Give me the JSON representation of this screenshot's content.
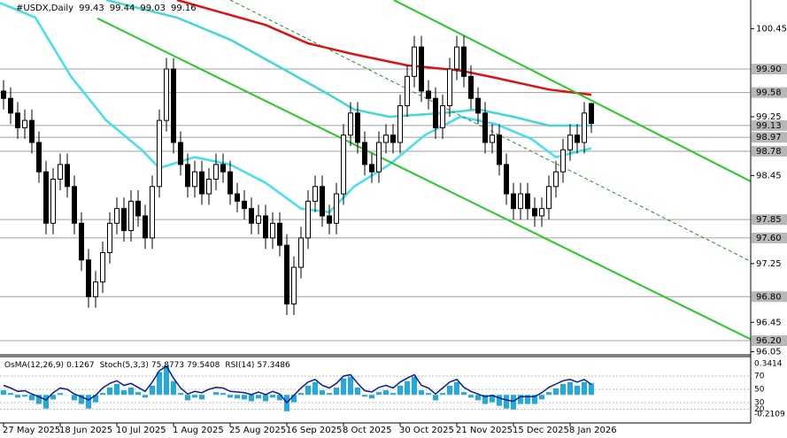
{
  "chart_data": {
    "type": "candlestick",
    "symbol": "#USDX,Daily",
    "quote": [
      99.43,
      99.44,
      99.03,
      99.16
    ],
    "ylim": [
      96.02,
      100.84
    ],
    "yticks": [
      100.45,
      99.25,
      98.45,
      97.25,
      96.45,
      96.05
    ],
    "levels": [
      {
        "value": 99.9,
        "label": "99.90"
      },
      99.58,
      99.13,
      98.97,
      98.78,
      97.85,
      {
        "value": 97.6,
        "label": "97.60"
      },
      {
        "value": 96.8,
        "label": "96.80"
      },
      {
        "value": 96.2,
        "label": "96.20"
      }
    ],
    "xticks": [
      {
        "value": 0,
        "label": "27 May 2025"
      },
      {
        "value": 8,
        "label": "18 Jun 2025"
      },
      {
        "value": 16,
        "label": "10 Jul 2025"
      },
      {
        "value": 24,
        "label": "1 Aug 2025"
      },
      {
        "value": 32,
        "label": "25 Aug 2025"
      },
      {
        "value": 40,
        "label": "16 Sep 2025"
      },
      {
        "value": 48,
        "label": "8 Oct 2025"
      },
      {
        "value": 56,
        "label": "30 Oct 2025"
      },
      {
        "value": 64,
        "label": "21 Nov 2025"
      },
      {
        "value": 72,
        "label": "15 Dec 2025"
      },
      {
        "value": 80,
        "label": "8 Jan 2026"
      }
    ],
    "open": [
      99.6,
      99.5,
      99.3,
      99.1,
      99.2,
      98.9,
      98.5,
      97.8,
      98.4,
      98.6,
      98.3,
      97.8,
      97.3,
      96.8,
      97.0,
      97.4,
      97.8,
      98.0,
      97.7,
      98.1,
      97.9,
      97.6,
      98.3,
      99.2,
      99.9,
      98.9,
      98.6,
      98.3,
      98.5,
      98.2,
      98.4,
      98.6,
      98.5,
      98.2,
      98.1,
      98.0,
      97.8,
      97.9,
      97.6,
      97.8,
      97.5,
      96.7,
      97.2,
      97.6,
      98.1,
      98.3,
      97.9,
      97.8,
      98.2,
      99.0,
      99.3,
      98.9,
      98.6,
      98.5,
      98.9,
      99.0,
      98.9,
      99.4,
      99.8,
      100.2,
      99.6,
      99.5,
      99.1,
      99.4,
      99.9,
      100.2,
      99.8,
      99.5,
      99.3,
      98.9,
      99.0,
      98.6,
      98.2,
      98.0,
      98.2,
      98.0,
      97.9,
      98.0,
      98.3,
      98.5,
      98.8,
      99.0,
      98.9,
      99.43
    ],
    "high": [
      99.75,
      99.65,
      99.45,
      99.35,
      99.35,
      99.05,
      98.65,
      98.55,
      98.75,
      98.75,
      98.45,
      97.95,
      97.45,
      97.15,
      97.55,
      97.95,
      98.15,
      98.15,
      98.25,
      98.25,
      98.05,
      98.45,
      99.35,
      100.05,
      100.05,
      99.05,
      98.75,
      98.65,
      98.65,
      98.55,
      98.75,
      98.75,
      98.65,
      98.35,
      98.25,
      98.15,
      98.05,
      98.05,
      97.95,
      97.95,
      97.65,
      97.35,
      97.75,
      98.25,
      98.45,
      98.45,
      98.05,
      98.35,
      99.15,
      99.45,
      99.45,
      99.05,
      98.75,
      99.05,
      99.15,
      99.15,
      99.55,
      99.95,
      100.35,
      100.35,
      99.75,
      99.65,
      99.55,
      100.05,
      100.35,
      100.35,
      99.95,
      99.65,
      99.45,
      99.15,
      99.15,
      98.75,
      98.35,
      98.35,
      98.35,
      98.15,
      98.15,
      98.45,
      98.65,
      98.95,
      99.15,
      99.15,
      99.45,
      99.44
    ],
    "low": [
      99.35,
      99.15,
      98.95,
      98.95,
      98.75,
      98.35,
      97.65,
      97.65,
      98.25,
      98.15,
      97.65,
      97.15,
      96.65,
      96.65,
      96.85,
      97.25,
      97.65,
      97.55,
      97.55,
      97.75,
      97.45,
      97.45,
      98.15,
      99.05,
      98.75,
      98.45,
      98.15,
      98.15,
      98.05,
      98.05,
      98.25,
      98.35,
      98.05,
      97.95,
      97.85,
      97.65,
      97.65,
      97.45,
      97.45,
      97.35,
      96.55,
      96.55,
      97.05,
      97.45,
      97.95,
      97.75,
      97.65,
      97.65,
      98.05,
      98.85,
      98.75,
      98.45,
      98.35,
      98.35,
      98.75,
      98.75,
      98.75,
      99.25,
      99.65,
      99.45,
      99.35,
      98.95,
      98.95,
      99.25,
      99.75,
      99.65,
      99.35,
      99.15,
      98.75,
      98.75,
      98.45,
      98.05,
      97.85,
      97.85,
      97.85,
      97.75,
      97.75,
      97.85,
      98.15,
      98.35,
      98.65,
      98.75,
      98.75,
      99.03
    ],
    "close": [
      99.5,
      99.3,
      99.1,
      99.2,
      98.9,
      98.5,
      97.8,
      98.4,
      98.6,
      98.3,
      97.8,
      97.3,
      96.8,
      97.0,
      97.4,
      97.8,
      98.0,
      97.7,
      98.1,
      97.9,
      97.6,
      98.3,
      99.2,
      99.9,
      98.9,
      98.6,
      98.3,
      98.5,
      98.2,
      98.4,
      98.6,
      98.5,
      98.2,
      98.1,
      98.0,
      97.8,
      97.9,
      97.6,
      97.8,
      97.5,
      96.7,
      97.2,
      97.6,
      98.1,
      98.3,
      97.9,
      97.8,
      98.2,
      99.0,
      99.3,
      98.9,
      98.6,
      98.5,
      98.9,
      99.0,
      98.9,
      99.4,
      99.8,
      100.2,
      99.6,
      99.5,
      99.1,
      99.4,
      99.9,
      100.2,
      99.8,
      99.5,
      99.3,
      98.9,
      99.0,
      98.6,
      98.2,
      98.0,
      98.2,
      98.0,
      97.9,
      98.0,
      98.3,
      98.5,
      98.8,
      99.0,
      98.9,
      99.3,
      99.16
    ],
    "lines": [
      {
        "color": "#e01010",
        "x": [
          24.5,
          37,
          43,
          49.5,
          57,
          64.5,
          69.5,
          77,
          83
        ],
        "values": [
          100.84,
          100.5,
          100.25,
          100.1,
          99.95,
          99.88,
          99.78,
          99.62,
          99.55
        ]
      },
      {
        "color": "#40d8d0",
        "x": [
          14.5,
          24.5,
          32,
          39.5,
          46,
          49.5,
          54.5,
          62,
          67,
          72,
          77,
          83
        ],
        "values": [
          100.84,
          100.6,
          100.3,
          99.9,
          99.55,
          99.35,
          99.25,
          99.3,
          99.35,
          99.25,
          99.13,
          99.13
        ]
      },
      {
        "color": "#40e0f0",
        "x": [
          -0.5,
          4.5,
          9.5,
          14.5,
          19.5,
          22,
          27,
          32,
          37,
          42,
          46,
          49.5,
          54.5,
          59.5,
          64.5,
          69.5,
          74.5,
          78,
          83
        ],
        "values": [
          100.8,
          100.6,
          99.8,
          99.2,
          98.8,
          98.55,
          98.7,
          98.6,
          98.35,
          98.0,
          97.95,
          98.3,
          98.6,
          99.0,
          99.25,
          99.15,
          98.95,
          98.7,
          98.82
        ]
      }
    ],
    "trendlines": [
      {
        "color": "#22cc22",
        "style": "solid",
        "x": [
          55.1,
          105.5
        ],
        "values": [
          100.84,
          98.37
        ]
      },
      {
        "color": "#22cc22",
        "style": "solid",
        "x": [
          13.25,
          105.5
        ],
        "values": [
          100.59,
          96.22
        ]
      },
      {
        "color": "#2a8a2a",
        "style": "dashed",
        "x": [
          32,
          105.5
        ],
        "values": [
          100.84,
          97.28
        ]
      }
    ],
    "indicators": [
      {
        "name": "OsMA(12,26,9)",
        "values": [
          0.1267
        ]
      },
      {
        "name": "Stoch(5,3,3)",
        "values": [
          75.8773,
          79.5408
        ]
      },
      {
        "name": "RSI(14)",
        "values": [
          57.3486
        ]
      }
    ],
    "osma_lim": [
      -0.2109,
      0.3414
    ],
    "osma": [
      0.05,
      0.02,
      -0.03,
      -0.02,
      -0.06,
      -0.1,
      -0.15,
      -0.05,
      0.02,
      0,
      -0.06,
      -0.1,
      -0.15,
      -0.08,
      0.02,
      0.08,
      0.12,
      0.05,
      0.08,
      0.03,
      -0.03,
      0.1,
      0.25,
      0.32,
      0.15,
      0.02,
      -0.06,
      -0.03,
      -0.05,
      0,
      0.03,
      0.02,
      -0.03,
      -0.04,
      -0.05,
      -0.07,
      -0.04,
      -0.07,
      -0.03,
      -0.06,
      -0.18,
      -0.08,
      0.02,
      0.1,
      0.14,
      0.05,
      0.02,
      0.08,
      0.18,
      0.2,
      0.08,
      -0.02,
      -0.04,
      0.03,
      0.05,
      0.02,
      0.1,
      0.15,
      0.2,
      0.05,
      0.02,
      -0.06,
      0.02,
      0.1,
      0.14,
      0.03,
      -0.03,
      -0.06,
      -0.1,
      -0.08,
      -0.12,
      -0.15,
      -0.16,
      -0.1,
      -0.1,
      -0.1,
      -0.05,
      0.03,
      0.07,
      0.12,
      0.14,
      0.1,
      0.14,
      0.1267
    ],
    "osc_lim": [
      0,
      100
    ],
    "osc_ticks": [
      70,
      50,
      30,
      20
    ],
    "rsi": [
      56,
      52,
      47,
      48,
      43,
      39,
      34,
      45,
      52,
      50,
      43,
      39,
      34,
      41,
      52,
      59,
      63,
      56,
      59,
      53,
      47,
      61,
      78,
      85,
      67,
      52,
      43,
      47,
      45,
      50,
      53,
      52,
      47,
      46,
      45,
      42,
      46,
      42,
      47,
      43,
      30,
      41,
      52,
      61,
      65,
      56,
      52,
      59,
      70,
      72,
      59,
      48,
      46,
      53,
      56,
      52,
      61,
      67,
      72,
      56,
      52,
      43,
      52,
      61,
      65,
      53,
      47,
      43,
      39,
      41,
      37,
      34,
      32,
      39,
      39,
      39,
      45,
      53,
      58,
      63,
      65,
      61,
      65,
      57.3486
    ]
  }
}
